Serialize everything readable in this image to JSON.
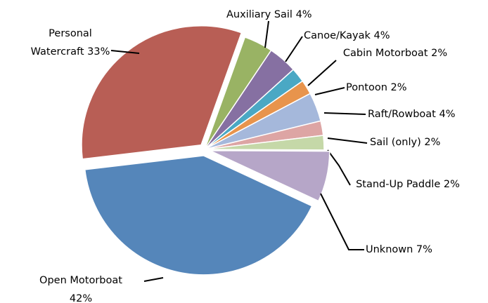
{
  "chart_data": {
    "type": "pie",
    "categories": [
      "Open Motorboat",
      "Personal Watercraft",
      "Auxiliary Sail",
      "Canoe/Kayak",
      "Cabin Motorboat",
      "Pontoon",
      "Raft/Rowboat",
      "Sail (only)",
      "Stand-Up Paddle",
      "Unknown"
    ],
    "values": [
      42,
      33,
      4,
      4,
      2,
      2,
      4,
      2,
      2,
      7
    ],
    "value_labels": [
      "42%",
      "33%",
      "4%",
      "4%",
      "2%",
      "2%",
      "4%",
      "2%",
      "2%",
      "7%"
    ],
    "colors": [
      "#5586ba",
      "#b85e55",
      "#99b364",
      "#8670a2",
      "#4aa8c4",
      "#e8944c",
      "#a5b8db",
      "#dda5a4",
      "#c5d8a8",
      "#b6a6c8"
    ]
  }
}
